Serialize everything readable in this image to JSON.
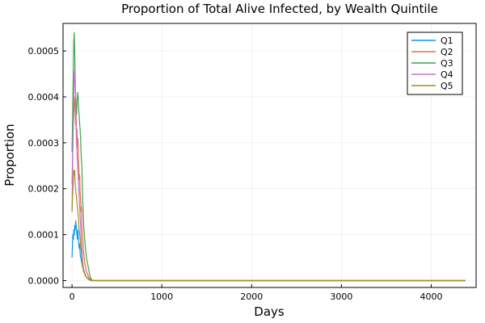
{
  "chart_data": {
    "type": "line",
    "title": "Proportion of Total Alive Infected, by Wealth Quintile",
    "xlabel": "Days",
    "ylabel": "Proportion",
    "xlim": [
      -100,
      4500
    ],
    "ylim": [
      -1.5e-05,
      0.00056
    ],
    "xticks": [
      0,
      1000,
      2000,
      3000,
      4000
    ],
    "xtick_labels": [
      "0",
      "1000",
      "2000",
      "3000",
      "4000"
    ],
    "yticks": [
      0,
      0.0001,
      0.0002,
      0.0003,
      0.0004,
      0.0005
    ],
    "ytick_labels": [
      "0.0000",
      "0.0001",
      "0.0002",
      "0.0003",
      "0.0004",
      "0.0005"
    ],
    "grid": true,
    "legend_position": "top-right",
    "series": [
      {
        "name": "Q1",
        "color": "#009af9",
        "x": [
          0,
          5,
          10,
          15,
          20,
          25,
          30,
          35,
          40,
          45,
          50,
          55,
          60,
          65,
          70,
          75,
          80,
          85,
          90,
          95,
          100,
          105,
          110,
          115,
          120,
          125,
          130,
          140,
          150,
          160,
          170,
          180,
          190,
          200,
          210,
          220,
          230,
          4380
        ],
        "y": [
          5e-05,
          8e-05,
          0.0001,
          9e-05,
          0.00011,
          0.0001,
          0.00012,
          0.00011,
          0.00013,
          0.00012,
          0.00011,
          0.0001,
          9e-05,
          0.00011,
          9e-05,
          8e-05,
          7e-05,
          8e-05,
          6e-05,
          5e-05,
          5e-05,
          4e-05,
          4e-05,
          3e-05,
          3e-05,
          2.5e-05,
          2e-05,
          1.5e-05,
          1e-05,
          8e-06,
          6e-06,
          4e-06,
          3e-06,
          2e-06,
          1e-06,
          0,
          0,
          0
        ]
      },
      {
        "name": "Q2",
        "color": "#e26f46",
        "x": [
          0,
          5,
          10,
          15,
          20,
          25,
          30,
          35,
          40,
          45,
          50,
          55,
          60,
          65,
          70,
          75,
          80,
          85,
          90,
          95,
          100,
          105,
          110,
          115,
          120,
          125,
          130,
          140,
          150,
          160,
          170,
          180,
          190,
          200,
          210,
          220,
          230,
          4380
        ],
        "y": [
          0.00021,
          0.00026,
          0.00031,
          0.00034,
          0.00036,
          0.0004,
          0.00039,
          0.00037,
          0.00034,
          0.00036,
          0.00032,
          0.00033,
          0.00029,
          0.00031,
          0.00027,
          0.00025,
          0.00022,
          0.00023,
          0.00019,
          0.00018,
          0.00015,
          0.00016,
          0.00012,
          0.0001,
          9e-05,
          7e-05,
          6e-05,
          4e-05,
          3e-05,
          2e-05,
          1.5e-05,
          1e-05,
          6e-06,
          4e-06,
          2e-06,
          0,
          0,
          0
        ]
      },
      {
        "name": "Q3",
        "color": "#3da44d",
        "x": [
          0,
          5,
          10,
          15,
          20,
          25,
          30,
          35,
          40,
          45,
          50,
          55,
          60,
          65,
          70,
          75,
          80,
          85,
          90,
          95,
          100,
          105,
          110,
          115,
          120,
          125,
          130,
          140,
          150,
          160,
          170,
          180,
          190,
          200,
          210,
          220,
          230,
          4380
        ],
        "y": [
          0.00028,
          0.00034,
          0.0004,
          0.00046,
          0.00052,
          0.00054,
          0.0005,
          0.00044,
          0.0004,
          0.00038,
          0.00036,
          0.00039,
          0.0004,
          0.00041,
          0.00039,
          0.00037,
          0.00036,
          0.00034,
          0.00033,
          0.00031,
          0.00028,
          0.00026,
          0.00025,
          0.0002,
          0.00017,
          0.00015,
          0.00012,
          9e-05,
          7e-05,
          5e-05,
          4e-05,
          3e-05,
          2e-05,
          1e-05,
          5e-06,
          2e-06,
          0,
          0
        ]
      },
      {
        "name": "Q4",
        "color": "#c271d2",
        "x": [
          0,
          5,
          10,
          15,
          20,
          25,
          30,
          35,
          40,
          45,
          50,
          55,
          60,
          65,
          70,
          75,
          80,
          85,
          90,
          95,
          100,
          105,
          110,
          115,
          120,
          125,
          130,
          140,
          150,
          160,
          170,
          180,
          190,
          200,
          210,
          220,
          230,
          4380
        ],
        "y": [
          0.00015,
          0.00023,
          0.0003,
          0.00036,
          0.00041,
          0.00045,
          0.00046,
          0.00042,
          0.00039,
          0.00034,
          0.0003,
          0.00028,
          0.00026,
          0.00024,
          0.00022,
          0.0002,
          0.00018,
          0.00016,
          0.00014,
          0.00012,
          0.0001,
          8e-05,
          7e-05,
          5e-05,
          4e-05,
          3e-05,
          2.5e-05,
          1.8e-05,
          1.2e-05,
          8e-06,
          5e-06,
          3e-06,
          2e-06,
          1e-06,
          0,
          0,
          0,
          0
        ]
      },
      {
        "name": "Q5",
        "color": "#ac8d18",
        "x": [
          0,
          5,
          10,
          15,
          20,
          25,
          30,
          35,
          40,
          45,
          50,
          55,
          60,
          65,
          70,
          75,
          80,
          85,
          90,
          95,
          100,
          105,
          110,
          115,
          120,
          125,
          130,
          140,
          150,
          160,
          170,
          180,
          190,
          200,
          210,
          220,
          230,
          4380
        ],
        "y": [
          0.00015,
          0.00018,
          0.0002,
          0.00022,
          0.00024,
          0.00023,
          0.00024,
          0.00021,
          0.0002,
          0.00019,
          0.00018,
          0.00017,
          0.00016,
          0.00015,
          0.00014,
          0.00012,
          0.00011,
          0.0001,
          9e-05,
          8e-05,
          7e-05,
          6e-05,
          5e-05,
          4e-05,
          3e-05,
          2.5e-05,
          2e-05,
          1.5e-05,
          1e-05,
          7e-06,
          5e-06,
          3e-06,
          2e-06,
          1e-06,
          0,
          0,
          0,
          0
        ]
      }
    ]
  }
}
